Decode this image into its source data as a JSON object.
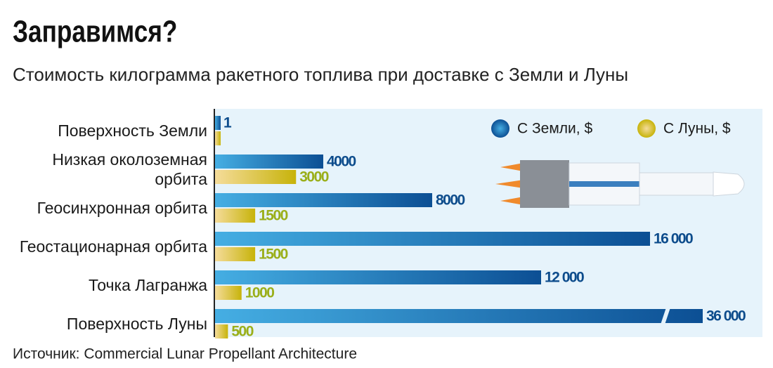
{
  "chart_data": {
    "type": "bar",
    "orientation": "horizontal",
    "title": "Заправимся?",
    "subtitle": "Стоимость килограмма ракетного топлива при доставке с Земли и Луны",
    "source": "Источник: Commercial Lunar Propellant Architecture",
    "categories": [
      "Поверхность Земли",
      "Низкая околоземная орбита",
      "Геосинхронная орбита",
      "Геостационарная орбита",
      "Точка Лагранжа",
      "Поверхность Луны"
    ],
    "series": [
      {
        "name": "С Земли, $",
        "color": "#0c4f94",
        "values": [
          1,
          4000,
          8000,
          16000,
          12000,
          36000
        ],
        "value_labels": [
          "1",
          "4000",
          "8000",
          "16 000",
          "12 000",
          "36 000"
        ]
      },
      {
        "name": "С Луны, $",
        "color": "#a8b41a",
        "values": [
          1,
          3000,
          1500,
          1500,
          1000,
          500
        ],
        "value_labels": [
          null,
          "3000",
          "1500",
          "1500",
          "1000",
          "500"
        ]
      }
    ],
    "xlim": [
      0,
      16000
    ],
    "axis_break": true
  }
}
